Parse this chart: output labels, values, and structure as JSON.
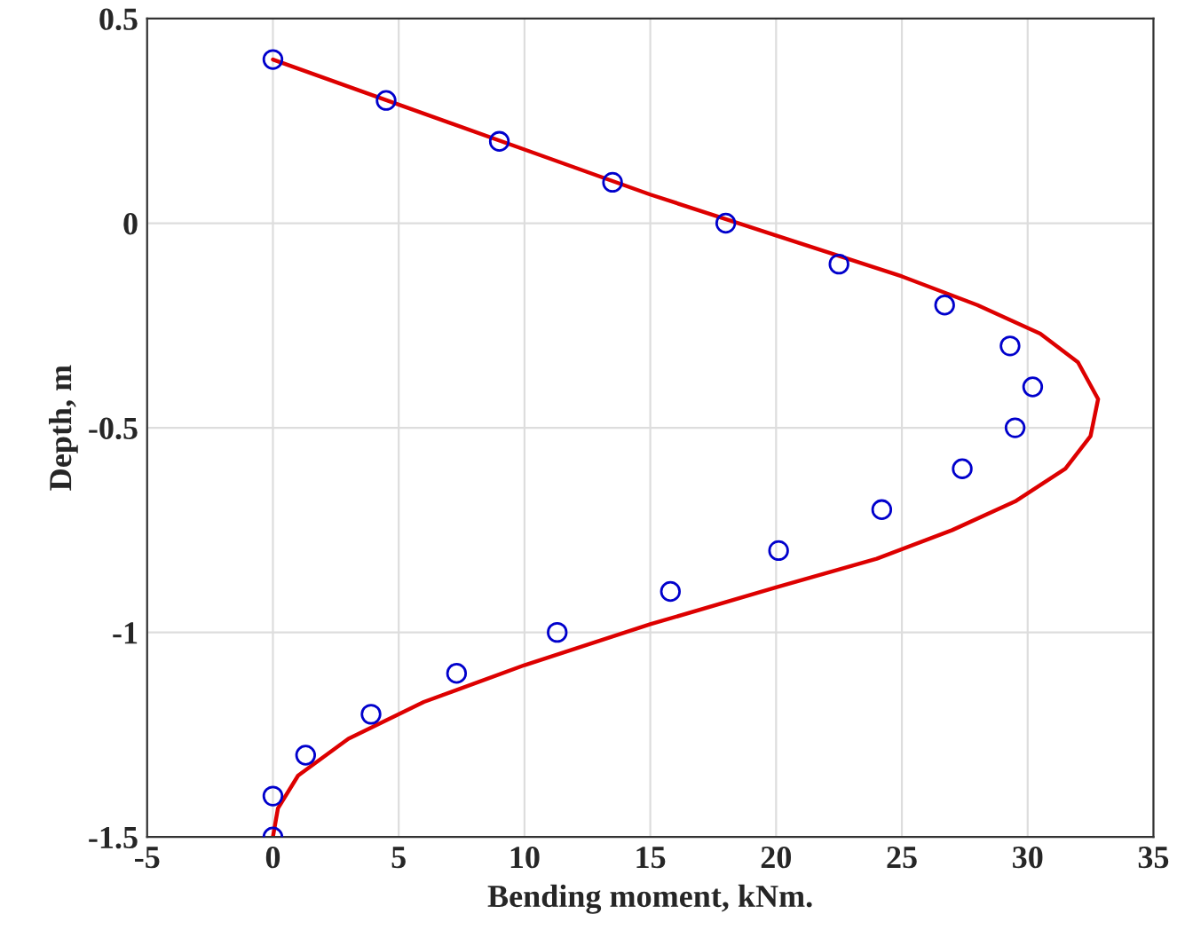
{
  "chart_data": {
    "type": "scatter",
    "xlabel": "Bending moment, kNm.",
    "ylabel": "Depth, m",
    "series": [
      {
        "color": "#0000cc",
        "marker": "circle",
        "x": [
          0,
          4.5,
          9,
          13.5,
          18,
          22.5,
          26.7,
          29.3,
          30.2,
          29.5,
          27.4,
          24.2,
          20.1,
          15.8,
          11.3,
          7.3,
          3.9,
          1.3,
          0,
          0
        ],
        "values": [
          0.4,
          0.3,
          0.2,
          0.1,
          0,
          -0.1,
          -0.2,
          -0.3,
          -0.4,
          -0.5,
          -0.6,
          -0.7,
          -0.8,
          -0.9,
          -1.0,
          -1.1,
          -1.2,
          -1.3,
          -1.4,
          -1.5
        ]
      },
      {
        "type": "line",
        "color": "#dd0000",
        "line_style": "solid",
        "x": [
          0,
          5,
          10,
          15,
          20,
          25,
          28,
          30.5,
          32,
          32.8,
          32.5,
          31.5,
          29.5,
          27,
          24,
          20,
          15,
          10,
          6,
          3,
          1,
          0.2,
          0
        ],
        "values": [
          0.4,
          0.29,
          0.18,
          0.07,
          -0.03,
          -0.13,
          -0.2,
          -0.27,
          -0.34,
          -0.43,
          -0.52,
          -0.6,
          -0.68,
          -0.75,
          -0.82,
          -0.89,
          -0.98,
          -1.08,
          -1.17,
          -1.26,
          -1.35,
          -1.43,
          -1.5
        ]
      }
    ],
    "xlim": [
      -5,
      35
    ],
    "xticks": [
      -5,
      0,
      5,
      10,
      15,
      20,
      25,
      30,
      35
    ],
    "ylim": [
      -1.5,
      0.5
    ],
    "yticks": [
      -1.5,
      -1,
      -0.5,
      0,
      0.5
    ],
    "grid": true
  }
}
